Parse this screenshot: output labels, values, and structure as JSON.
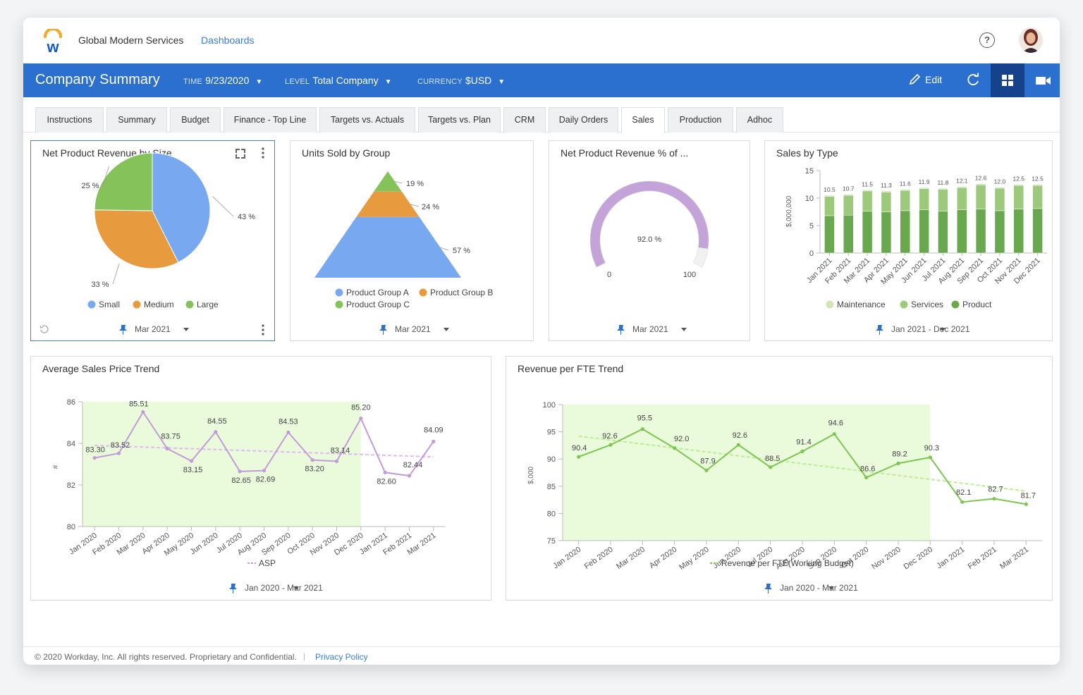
{
  "header": {
    "org_name": "Global Modern Services",
    "dashboards_link": "Dashboards"
  },
  "toolbar": {
    "title": "Company Summary",
    "time_label": "TIME",
    "time_value": "9/23/2020",
    "level_label": "LEVEL",
    "level_value": "Total Company",
    "currency_label": "CURRENCY",
    "currency_value": "$USD",
    "edit_label": "Edit"
  },
  "tabs": [
    "Instructions",
    "Summary",
    "Budget",
    "Finance - Top Line",
    "Targets vs. Actuals",
    "Targets vs. Plan",
    "CRM",
    "Daily Orders",
    "Sales",
    "Production",
    "Adhoc"
  ],
  "active_tab": "Sales",
  "footer": {
    "copyright": "© 2020 Workday, Inc. All rights reserved. Proprietary and Confidential.",
    "privacy": "Privacy Policy"
  },
  "colors": {
    "blue_bar": "#2b6fcf",
    "small": "#78a9f0",
    "medium": "#e89a3e",
    "large": "#86c25a",
    "gauge": "#c3a3d8",
    "asp": "#c9a6dc",
    "fte": "#7ec554",
    "band": "#eafbdb"
  },
  "chart_data": [
    {
      "id": "pie",
      "type": "pie",
      "title": "Net Product Revenue by Size",
      "slices": [
        {
          "label": "Small",
          "value": 43,
          "pct_label": "43 %"
        },
        {
          "label": "Medium",
          "value": 33,
          "pct_label": "33 %"
        },
        {
          "label": "Large",
          "value": 25,
          "pct_label": "25 %"
        }
      ],
      "footer": "Mar 2021"
    },
    {
      "id": "pyramid",
      "type": "pyramid",
      "title": "Units Sold by Group",
      "slices": [
        {
          "label": "Product Group C",
          "value": 19,
          "pct_label": "19 %"
        },
        {
          "label": "Product Group B",
          "value": 24,
          "pct_label": "24 %"
        },
        {
          "label": "Product Group A",
          "value": 57,
          "pct_label": "57 %"
        }
      ],
      "legend": [
        "Product Group A",
        "Product Group B",
        "Product Group C"
      ],
      "footer": "Mar 2021"
    },
    {
      "id": "gauge",
      "type": "gauge",
      "title": "Net Product Revenue % of ...",
      "value": 92.0,
      "value_label": "92.0 %",
      "min": 0,
      "max": 100,
      "min_label": "0",
      "max_label": "100",
      "footer": "Mar 2021"
    },
    {
      "id": "sales_type",
      "type": "bar",
      "stacked": true,
      "title": "Sales by Type",
      "ylabel": "$,000,000",
      "ylim": [
        0,
        15
      ],
      "yticks": [
        "0",
        "5",
        "10",
        "15"
      ],
      "categories": [
        "Jan 2021",
        "Feb 2021",
        "Mar 2021",
        "Apr 2021",
        "May 2021",
        "Jun 2021",
        "Jul 2021",
        "Aug 2021",
        "Sep 2021",
        "Oct 2021",
        "Nov 2021",
        "Dec 2021"
      ],
      "totals": [
        10.5,
        10.7,
        11.5,
        11.3,
        11.6,
        11.9,
        11.8,
        12.1,
        12.6,
        12.0,
        12.5,
        12.5
      ],
      "total_labels": [
        "10.5",
        "10.7",
        "11.5",
        "11.3",
        "11.6",
        "11.9",
        "11.8",
        "12.1",
        "12.6",
        "12.0",
        "12.5",
        "12.5"
      ],
      "series": [
        {
          "name": "Product",
          "values": [
            6.8,
            6.9,
            7.6,
            7.5,
            7.7,
            7.9,
            7.6,
            7.9,
            8.0,
            7.7,
            8.0,
            8.1
          ]
        },
        {
          "name": "Services",
          "values": [
            3.5,
            3.6,
            3.7,
            3.6,
            3.7,
            3.8,
            4.0,
            4.0,
            4.4,
            4.1,
            4.3,
            4.2
          ]
        },
        {
          "name": "Maintenance",
          "values": [
            0.2,
            0.2,
            0.2,
            0.2,
            0.2,
            0.2,
            0.2,
            0.2,
            0.2,
            0.2,
            0.2,
            0.2
          ]
        }
      ],
      "legend": [
        "Maintenance",
        "Services",
        "Product"
      ],
      "footer": "Jan 2021 - Dec 2021"
    },
    {
      "id": "asp",
      "type": "line",
      "title": "Average Sales Price Trend",
      "ylabel": "#",
      "ylim": [
        80,
        86
      ],
      "yticks": [
        "80",
        "82",
        "84",
        "86"
      ],
      "x": [
        "Jan 2020",
        "Feb 2020",
        "Mar 2020",
        "Apr 2020",
        "May 2020",
        "Jun 2020",
        "Jul 2020",
        "Aug 2020",
        "Sep 2020",
        "Oct 2020",
        "Nov 2020",
        "Dec 2020",
        "Jan 2021",
        "Feb 2021",
        "Mar 2021"
      ],
      "series": [
        {
          "name": "ASP",
          "values": [
            83.3,
            83.52,
            85.51,
            83.75,
            83.15,
            84.55,
            82.65,
            82.69,
            84.53,
            83.2,
            83.14,
            85.2,
            82.6,
            82.44,
            84.09
          ]
        }
      ],
      "value_labels": [
        "83.30",
        "83.52",
        "85.51",
        "83.75",
        "83.15",
        "84.55",
        "82.65",
        "82.69",
        "84.53",
        "83.20",
        "83.14",
        "85.20",
        "82.60",
        "82.44",
        "84.09"
      ],
      "trend": [
        83.9,
        83.35
      ],
      "highlight": [
        "Jan 2020",
        "Dec 2020"
      ],
      "footer": "Jan 2020 - Mar 2021"
    },
    {
      "id": "fte",
      "type": "line",
      "title": "Revenue per FTE Trend",
      "ylabel": "$,000",
      "ylim": [
        75,
        100
      ],
      "yticks": [
        "75",
        "80",
        "85",
        "90",
        "95",
        "100"
      ],
      "x": [
        "Jan 2020",
        "Feb 2020",
        "Mar 2020",
        "Apr 2020",
        "May 2020",
        "Jun 2020",
        "Jul 2020",
        "Aug 2020",
        "Sep 2020",
        "Oct 2020",
        "Nov 2020",
        "Dec 2020",
        "Jan 2021",
        "Feb 2021",
        "Mar 2021"
      ],
      "series": [
        {
          "name": "Revenue per FTE(Working Budget)",
          "values": [
            90.4,
            92.6,
            95.5,
            92.0,
            87.9,
            92.6,
            88.5,
            91.4,
            94.6,
            86.6,
            89.2,
            90.3,
            82.1,
            82.7,
            81.7
          ]
        }
      ],
      "value_labels": [
        "90.4",
        "92.6",
        "95.5",
        "92.0",
        "87.9",
        "92.6",
        "88.5",
        "91.4",
        "94.6",
        "86.6",
        "89.2",
        "90.3",
        "82.1",
        "82.7",
        "81.7"
      ],
      "trend": [
        94.2,
        84.1
      ],
      "highlight": [
        "Jan 2020",
        "Dec 2020"
      ],
      "footer": "Jan 2020 - Mar 2021"
    }
  ]
}
